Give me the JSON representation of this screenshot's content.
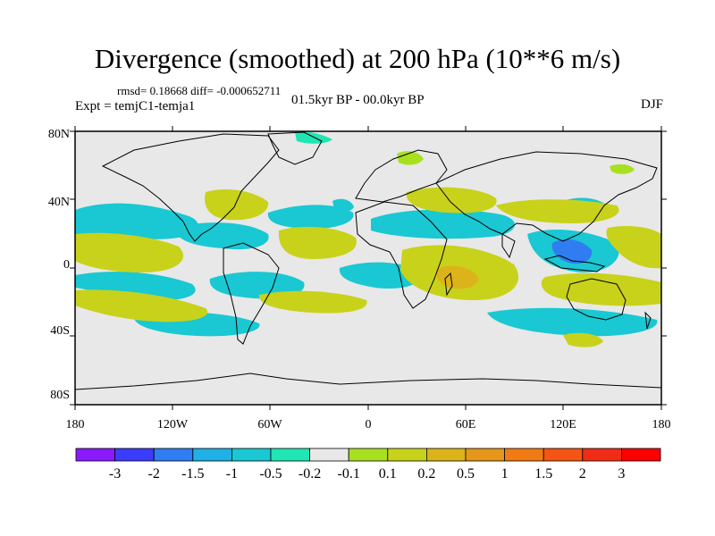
{
  "title": "Divergence (smoothed) at 200 hPa (10**6 m/s)",
  "stats_line": "rmsd= 0.18668 diff= -0.000652711",
  "experiment": "Expt = temjC1-temja1",
  "period": "01.5kyr BP - 00.0kyr BP",
  "season": "DJF",
  "map": {
    "lat_labels": [
      "80N",
      "40N",
      "0",
      "40S",
      "80S"
    ],
    "lon_labels": [
      "180",
      "120W",
      "60W",
      "0",
      "60E",
      "120E",
      "180"
    ],
    "background_color": "#e8e8e8"
  },
  "colorbar": {
    "labels": [
      "-3",
      "-2",
      "-1.5",
      "-1",
      "-0.5",
      "-0.2",
      "-0.1",
      "0.1",
      "0.2",
      "0.5",
      "1",
      "1.5",
      "2",
      "3"
    ],
    "colors": [
      "#8c1aff",
      "#3c3cff",
      "#2f7df0",
      "#1fb0e6",
      "#19c8d2",
      "#20e6b4",
      "#e8e8e8",
      "#a8e020",
      "#c8d21a",
      "#dcb41a",
      "#e6961a",
      "#f07a14",
      "#f55514",
      "#f02d14",
      "#ff0000"
    ]
  }
}
